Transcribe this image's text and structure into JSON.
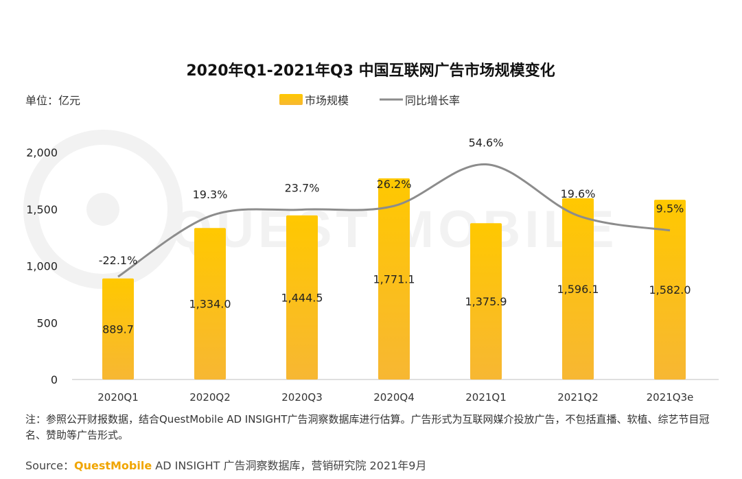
{
  "chart_data": {
    "type": "bar",
    "title": "2020年Q1-2021年Q3 中国互联网广告市场规模变化",
    "unit_label": "单位：亿元",
    "categories": [
      "2020Q1",
      "2020Q2",
      "2020Q3",
      "2020Q4",
      "2021Q1",
      "2021Q2",
      "2021Q3e"
    ],
    "series": [
      {
        "name": "市场规模",
        "kind": "bar",
        "color": "#ffc000",
        "values": [
          889.7,
          1334.0,
          1444.5,
          1771.1,
          1375.9,
          1596.1,
          1582.0
        ],
        "labels": [
          "889.7",
          "1,334.0",
          "1,444.5",
          "1,771.1",
          "1,375.9",
          "1,596.1",
          "1,582.0"
        ]
      },
      {
        "name": "同比增长率",
        "kind": "line",
        "color": "#8c8c8c",
        "values": [
          -22.1,
          19.3,
          23.7,
          26.2,
          54.6,
          19.6,
          9.5
        ],
        "labels": [
          "-22.1%",
          "19.3%",
          "23.7%",
          "26.2%",
          "54.6%",
          "19.6%",
          "9.5%"
        ]
      }
    ],
    "yticks": [
      0,
      500,
      1000,
      1500,
      2000
    ],
    "ytick_labels": [
      "0",
      "500",
      "1,000",
      "1,500",
      "2,000"
    ],
    "ylim": [
      0,
      2000
    ],
    "legend_position": "top-center",
    "grid": false
  },
  "watermark": "QUEST MOBILE",
  "footnote": "注：参照公开财报数据，结合QuestMobile AD INSIGHT广告洞察数据库进行估算。广告形式为互联网媒介投放广告，不包括直播、软植、综艺节目冠名、赞助等广告形式。",
  "source": {
    "prefix": "Source：",
    "brand": "QuestMobile",
    "rest": " AD INSIGHT 广告洞察数据库，营销研究院 2021年9月"
  }
}
